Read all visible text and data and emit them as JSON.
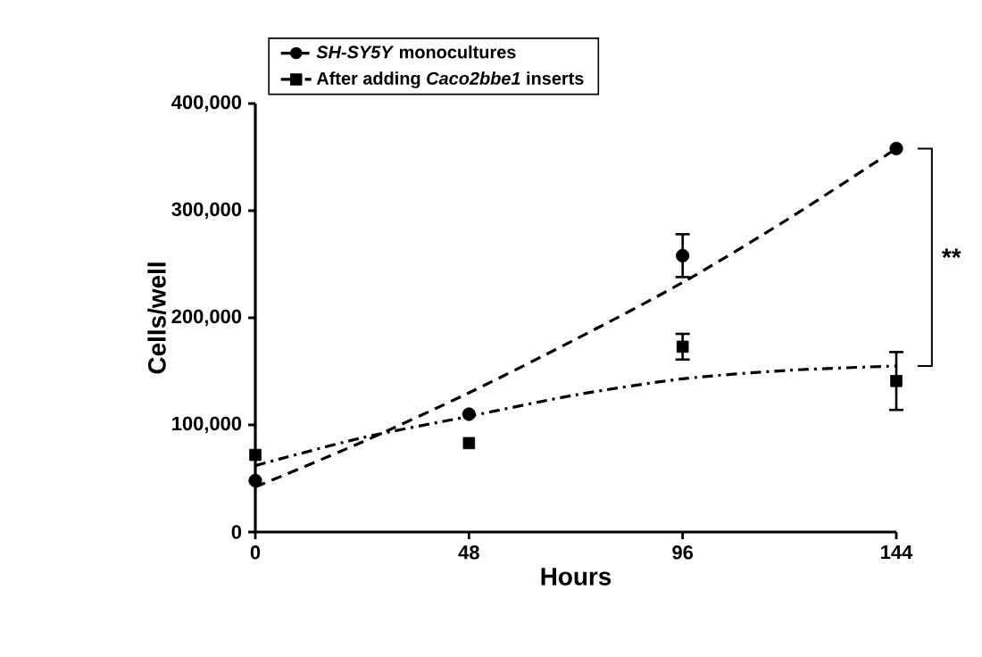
{
  "chart_data": {
    "type": "scatter",
    "xlabel": "Hours",
    "ylabel": "Cells/well",
    "x": [
      0,
      48,
      96,
      144
    ],
    "series": [
      {
        "name": "*SH-SY5Y* monocultures",
        "color": "#000000",
        "marker": "circle",
        "line_style": "dashed",
        "values": [
          48000,
          110000,
          258000,
          358000
        ],
        "errors": [
          null,
          null,
          20000,
          null
        ]
      },
      {
        "name": "After adding *Caco2bbe1* inserts",
        "color": "#000000",
        "marker": "square",
        "line_style": "dashdotted",
        "values": [
          72000,
          83000,
          173000,
          141000
        ],
        "errors": [
          null,
          null,
          12000,
          27000
        ]
      },
      {
        "type": "line",
        "color": "#000000",
        "line_style": "dashed",
        "x": [
          0,
          24,
          48,
          72,
          96,
          120,
          144
        ],
        "values": [
          42000,
          84000,
          130000,
          180000,
          233000,
          293000,
          358000
        ]
      },
      {
        "type": "line",
        "color": "#000000",
        "line_style": "dashdotted",
        "x": [
          0,
          24,
          48,
          72,
          96,
          120,
          144
        ],
        "values": [
          62000,
          88000,
          108000,
          128000,
          143000,
          151000,
          155000
        ]
      }
    ],
    "xlim": [
      0,
      144
    ],
    "xticks": [
      0,
      48,
      96,
      144
    ],
    "ylim": [
      0,
      400000
    ],
    "yticks": [
      {
        "value": 0,
        "label": "0"
      },
      {
        "value": 100000,
        "label": "100,000"
      },
      {
        "value": 200000,
        "label": "200,000"
      },
      {
        "value": 300000,
        "label": "300,000"
      },
      {
        "value": 400000,
        "label": "400,000"
      }
    ],
    "annotations": [
      "**"
    ],
    "legend": "top left",
    "grid": false
  }
}
